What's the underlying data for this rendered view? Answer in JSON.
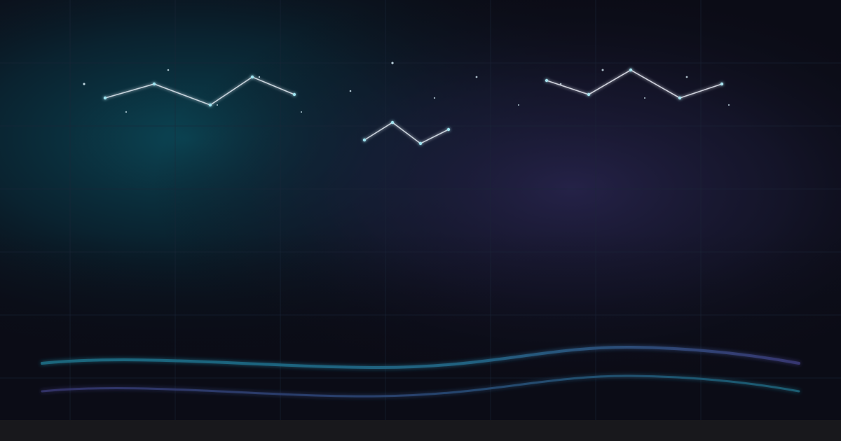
{
  "colors": {
    "background": "#0b0c16",
    "teal_glow": "#0a4a58",
    "purple_glow": "#2a2450",
    "grid": "#1b2335",
    "star": "#cfe9f2",
    "constellation_line": "#dde6f0",
    "wave_teal": "#1e6f86",
    "wave_purple": "#3a3a78",
    "bottom_band": "#18181c"
  },
  "scene": {
    "constellations": [
      {
        "name": "constellation-left"
      },
      {
        "name": "constellation-center"
      },
      {
        "name": "constellation-right"
      }
    ],
    "waves": [
      {
        "name": "wave-upper"
      },
      {
        "name": "wave-lower"
      }
    ]
  }
}
